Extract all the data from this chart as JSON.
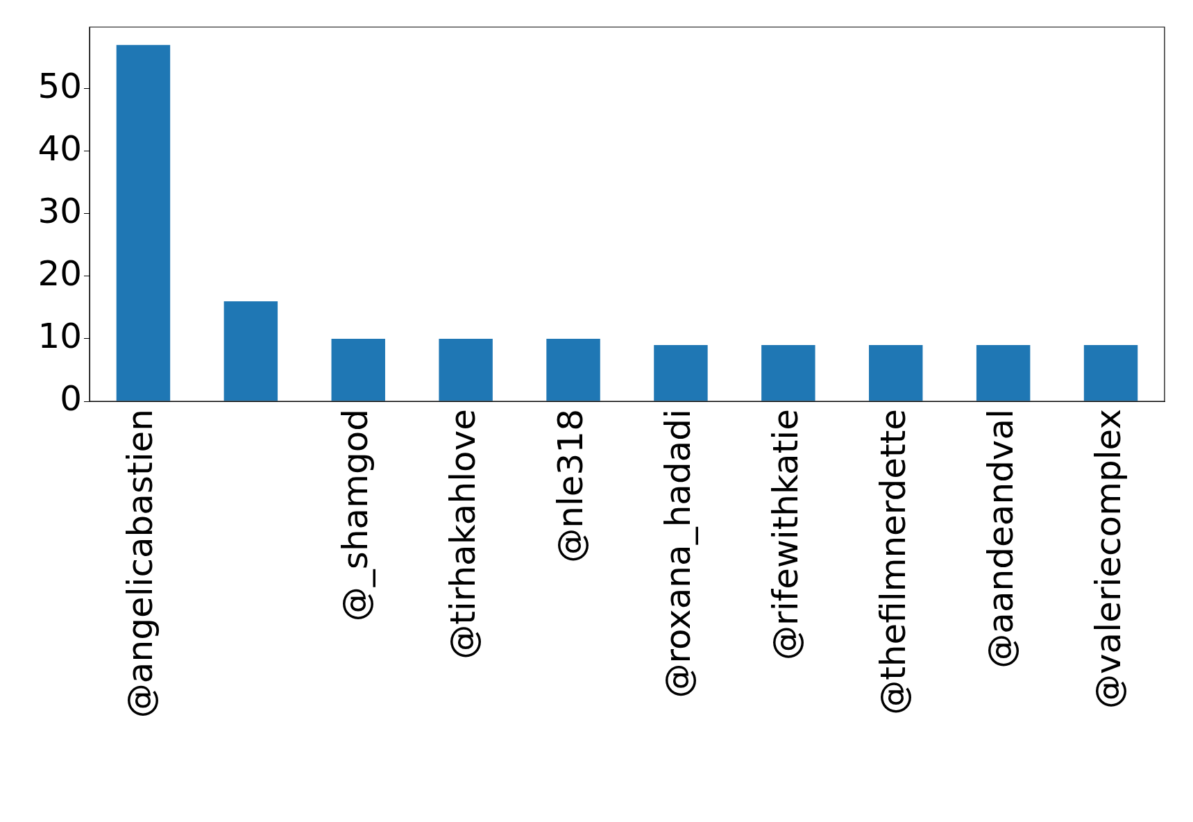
{
  "chart_data": {
    "type": "bar",
    "categories": [
      "@angelicabastien",
      null,
      "@_shamgod",
      "@tirhakahlove",
      "@nle318",
      "@roxana_hadadi",
      "@rifewithkatie",
      "@thefilmnerdette",
      "@aandeandval",
      "@valeriecomplex"
    ],
    "values": [
      57,
      16,
      10,
      10,
      10,
      9,
      9,
      9,
      9,
      9
    ],
    "color": "#1f77b4",
    "ylim": [
      0,
      59.85
    ],
    "yticks": [
      0,
      10,
      20,
      30,
      40,
      50
    ],
    "grid": false,
    "legend": false
  }
}
